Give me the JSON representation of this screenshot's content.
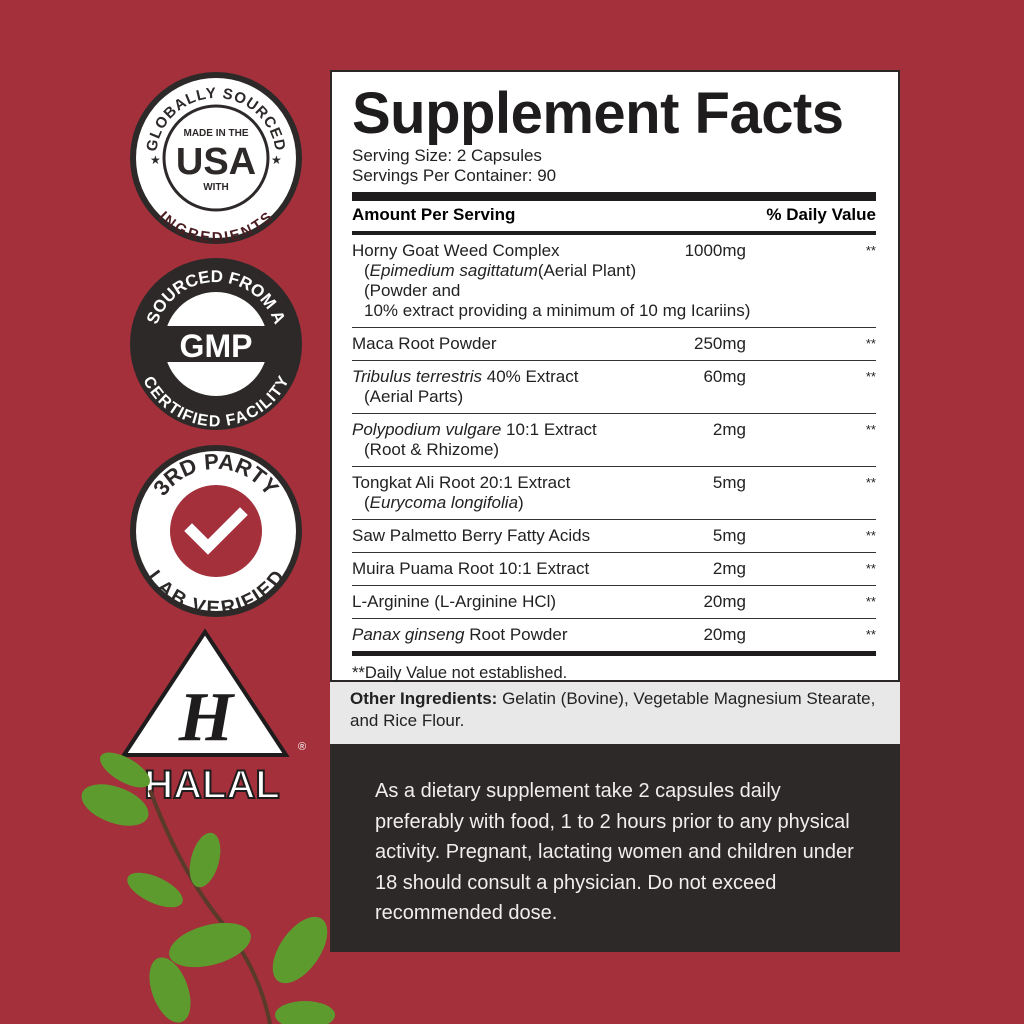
{
  "badges": {
    "usa": {
      "top": "GLOBALLY SOURCED",
      "line1": "MADE IN THE",
      "main": "USA",
      "line2": "WITH",
      "bottom": "INGREDIENTS"
    },
    "gmp": {
      "top": "SOURCED FROM A",
      "main": "GMP",
      "bottom": "CERTIFIED FACILITY"
    },
    "lab": {
      "top": "3RD PARTY",
      "bottom": "LAB VERIFIED",
      "icon": "checkmark-icon"
    },
    "halal": {
      "letter": "H",
      "label": "HALAL",
      "mark": "®"
    }
  },
  "facts": {
    "title": "Supplement Facts",
    "serving_size": "Serving Size: 2 Capsules",
    "servings_per_container": "Servings Per Container: 90",
    "amount_header": "Amount Per Serving",
    "dv_header": "% Daily Value",
    "rows": [
      {
        "name": "Horny Goat Weed Complex",
        "amount": "1000mg",
        "dv": "**",
        "sub_italic": "Epimedium sagittatum",
        "sub": "(Aerial Plant) (Powder and",
        "sub2": "10% extract providing a minimum of 10 mg Icariins)"
      },
      {
        "name": "Maca Root Powder",
        "amount": "250mg",
        "dv": "**"
      },
      {
        "name_italic": "Tribulus terrestris",
        "name": " 40% Extract",
        "sub": "(Aerial Parts)",
        "amount": "60mg",
        "dv": "**"
      },
      {
        "name_italic": "Polypodium vulgare",
        "name": " 10:1 Extract",
        "sub": "(Root & Rhizome)",
        "amount": "2mg",
        "dv": "**"
      },
      {
        "name": "Tongkat Ali Root 20:1 Extract",
        "sub_italic": "Eurycoma longifolia",
        "amount": "5mg",
        "dv": "**"
      },
      {
        "name": "Saw Palmetto Berry Fatty Acids",
        "amount": "5mg",
        "dv": "**"
      },
      {
        "name": "Muira Puama Root 10:1 Extract",
        "amount": "2mg",
        "dv": "**"
      },
      {
        "name": "L-Arginine (L-Arginine HCl)",
        "amount": "20mg",
        "dv": "**"
      },
      {
        "name_italic": "Panax ginseng",
        "name": " Root Powder",
        "amount": "20mg",
        "dv": "**"
      }
    ],
    "footnote": "**Daily Value not established."
  },
  "other_ingredients": {
    "label": "Other Ingredients:",
    "text": " Gelatin (Bovine), Vegetable Magnesium Stearate, and Rice Flour."
  },
  "directions": "As a dietary supplement take 2 capsules daily preferably with food, 1 to 2 hours prior to any physical activity. Pregnant, lactating women and children under 18 should consult a physician. Do not exceed recommended dose.",
  "colors": {
    "background": "#a3303b",
    "dark": "#2d2929",
    "panel": "#ffffff",
    "band": "#e8e8e8"
  }
}
